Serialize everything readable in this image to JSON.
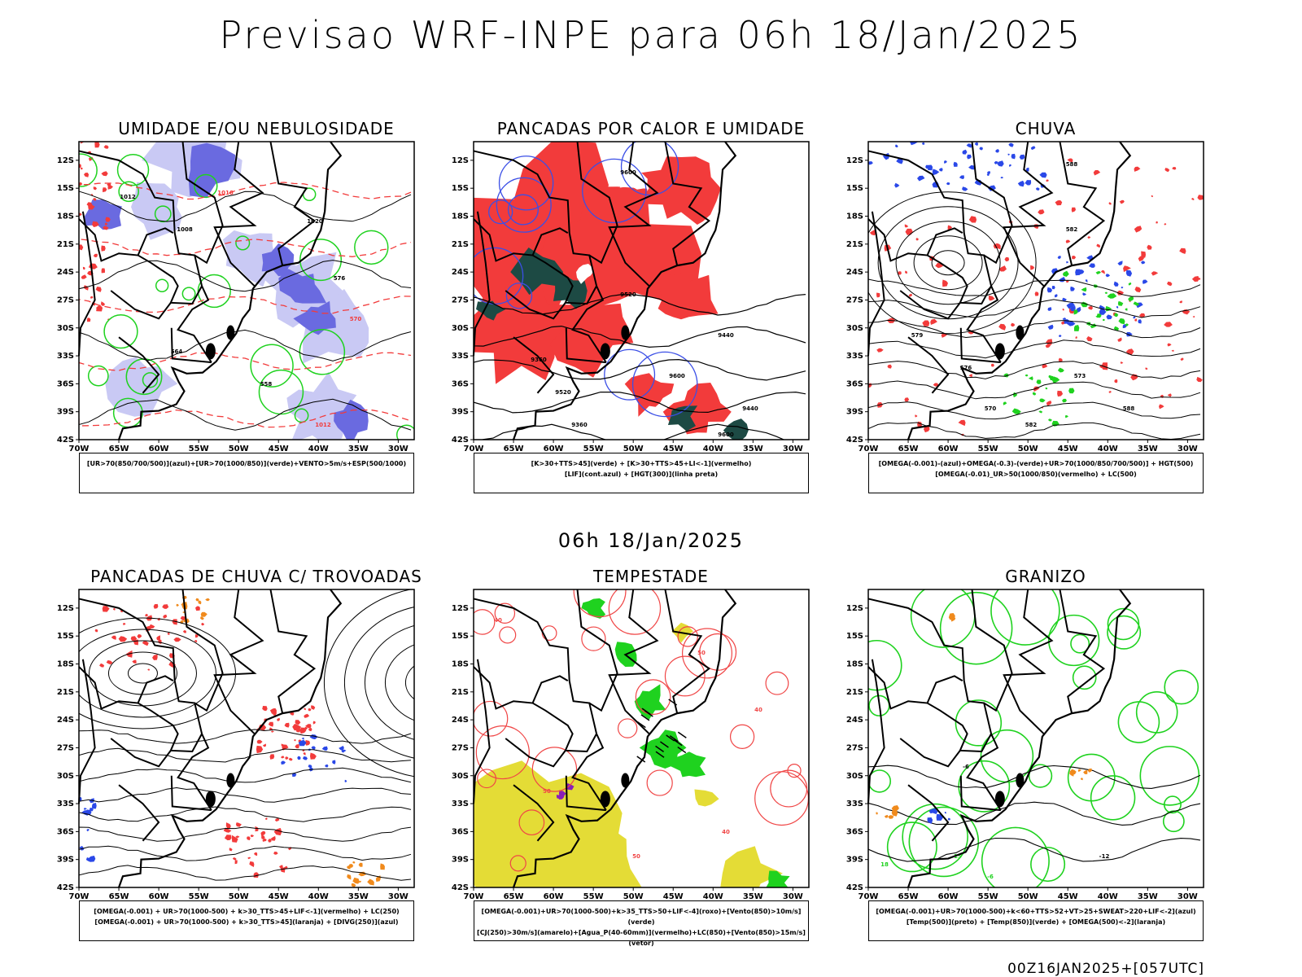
{
  "page": {
    "title": "Previsao WRF-INPE  para 06h 18/Jan/2025",
    "mid_title": "06h 18/Jan/2025",
    "footer": "00Z16JAN2025+[057UTC]"
  },
  "axes": {
    "lat_ticks": [
      "12S",
      "15S",
      "18S",
      "21S",
      "24S",
      "27S",
      "30S",
      "33S",
      "36S",
      "39S",
      "42S"
    ],
    "lon_ticks": [
      "70W",
      "65W",
      "60W",
      "55W",
      "50W",
      "45W",
      "40W",
      "35W",
      "30W"
    ],
    "lat_values": [
      -12,
      -15,
      -18,
      -21,
      -24,
      -27,
      -30,
      -33,
      -36,
      -39,
      -42
    ],
    "lon_values": [
      -70,
      -65,
      -60,
      -55,
      -50,
      -45,
      -40,
      -35,
      -30
    ]
  },
  "colors": {
    "blue_fill": "#6a6ae0",
    "light_blue": "#c9c9f4",
    "green_line": "#1fd21f",
    "red_fill": "#f23b3b",
    "dark_teal": "#1d4a44",
    "orange": "#f08a1c",
    "yellow": "#e4dc36",
    "purple": "#8a1fb8"
  },
  "chart_data": [
    {
      "type": "map",
      "title": "UMIDADE E/OU NEBULOSIDADE",
      "legend": [
        "[UR>70(850/700/500)](azul)+[UR>70(1000/850)](verde)+VENTO>5m/s+ESP(500/1000)"
      ],
      "contour_labels": [
        "1012",
        "1008",
        "1016",
        "1020",
        "576",
        "570",
        "564",
        "558"
      ],
      "extent": {
        "lon": [
          -70,
          -28
        ],
        "lat": [
          -42,
          -10
        ]
      }
    },
    {
      "type": "map",
      "title": "PANCADAS POR CALOR E UMIDADE",
      "legend": [
        "[K>30+TTS>45](verde) + [K>30+TTS>45+LI<-1](vermelho)",
        "[LIF](cont.azul) + [HGT(300)](linha preta)"
      ],
      "contour_labels": [
        "9600",
        "9520",
        "9440",
        "9360"
      ],
      "extent": {
        "lon": [
          -70,
          -28
        ],
        "lat": [
          -42,
          -10
        ]
      }
    },
    {
      "type": "map",
      "title": "CHUVA",
      "legend": [
        "[OMEGA(-0.001)-(azul)+OMEGA(-0.3)-(verde)+UR>70(1000/850/700/500)] + HGT(500)",
        "[OMEGA(-0.01)_UR>50(1000/850)(vermelho) + LC(500)"
      ],
      "contour_labels": [
        "588",
        "582",
        "579",
        "576",
        "573",
        "570"
      ],
      "extent": {
        "lon": [
          -70,
          -28
        ],
        "lat": [
          -42,
          -10
        ]
      }
    },
    {
      "type": "map",
      "title": "PANCADAS DE CHUVA C/ TROVOADAS",
      "legend": [
        "[OMEGA(-0.001) + UR>70(1000-500) + k>30_TTS>45+LIF<-1](vermelho) + LC(250)",
        "[OMEGA(-0.001) + UR>70(1000-500) + k>30_TTS>45](laranja) + [DIVG(250)](azul)"
      ],
      "contour_labels": [],
      "extent": {
        "lon": [
          -70,
          -28
        ],
        "lat": [
          -42,
          -10
        ]
      }
    },
    {
      "type": "map",
      "title": "TEMPESTADE",
      "legend": [
        "[OMEGA(-0.001)+UR>70(1000-500)+k>35_TTS>50+LIF<-4](roxo)+[Vento(850)>10m/s](verde)",
        "[CJ(250)>30m/s](amarelo)+[Agua_P(40-60mm)](vermelho)+LC(850)+[Vento(850)>15m/s](vetor)"
      ],
      "contour_labels": [
        "40",
        "50"
      ],
      "extent": {
        "lon": [
          -70,
          -28
        ],
        "lat": [
          -42,
          -10
        ]
      }
    },
    {
      "type": "map",
      "title": "GRANIZO",
      "legend": [
        "[OMEGA(-0.001)+UR>70(1000-500)+k<60+TTS>52+VT>25+SWEAT>220+LIF<-2](azul)",
        "[Temp(500)](preto) + [Temp(850)](verde) + [OMEGA(500)<-2](laranja)"
      ],
      "contour_labels": [
        "-6",
        "-12",
        "15",
        "18"
      ],
      "extent": {
        "lon": [
          -70,
          -28
        ],
        "lat": [
          -42,
          -10
        ]
      }
    }
  ]
}
